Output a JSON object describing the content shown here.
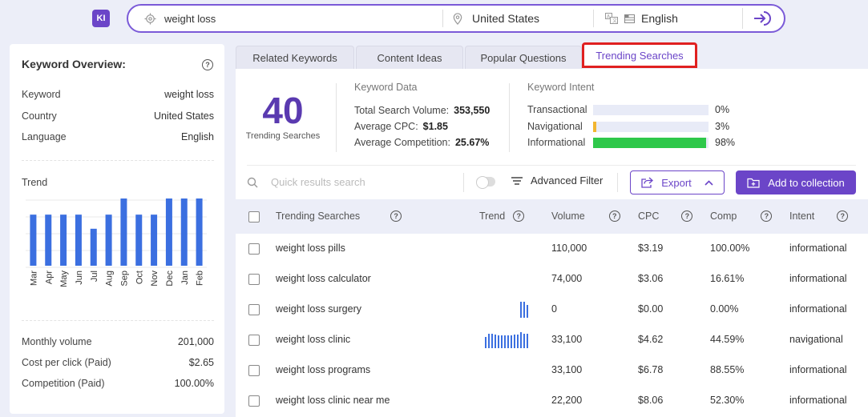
{
  "logo": "KI",
  "search": {
    "keyword": "weight loss",
    "country": "United States",
    "language": "English"
  },
  "overview": {
    "title": "Keyword Overview:",
    "rows": [
      {
        "label": "Keyword",
        "value": "weight loss"
      },
      {
        "label": "Country",
        "value": "United States"
      },
      {
        "label": "Language",
        "value": "English"
      }
    ],
    "trend_label": "Trend",
    "metrics": [
      {
        "label": "Monthly volume",
        "value": "201,000"
      },
      {
        "label": "Cost per click (Paid)",
        "value": "$2.65"
      },
      {
        "label": "Competition (Paid)",
        "value": "100.00%"
      }
    ]
  },
  "chart_data": {
    "type": "bar",
    "categories": [
      "Mar",
      "Apr",
      "May",
      "Jun",
      "Jul",
      "Aug",
      "Sep",
      "Oct",
      "Nov",
      "Dec",
      "Jan",
      "Feb"
    ],
    "values": [
      0.76,
      0.76,
      0.76,
      0.76,
      0.55,
      0.76,
      1.0,
      0.76,
      0.76,
      1.0,
      1.0,
      1.0
    ],
    "title": "",
    "xlabel": "",
    "ylabel": "",
    "grid": true,
    "color": "#3b6fe0"
  },
  "tabs": [
    {
      "label": "Related Keywords"
    },
    {
      "label": "Content Ideas"
    },
    {
      "label": "Popular Questions"
    },
    {
      "label": "Trending Searches"
    }
  ],
  "summary": {
    "count": "40",
    "count_caption": "Trending Searches",
    "kd_title": "Keyword Data",
    "kd_rows": [
      {
        "label": "Total Search Volume:",
        "value": "353,550"
      },
      {
        "label": "Average CPC:",
        "value": "$1.85"
      },
      {
        "label": "Average Competition:",
        "value": "25.67%"
      }
    ],
    "ki_title": "Keyword Intent",
    "intents": [
      {
        "label": "Transactional",
        "pct": "0%",
        "fraction": 0.0,
        "color": "#f2b630"
      },
      {
        "label": "Navigational",
        "pct": "3%",
        "fraction": 0.03,
        "color": "#f2b630"
      },
      {
        "label": "Informational",
        "pct": "98%",
        "fraction": 0.98,
        "color": "#2ec84a"
      }
    ]
  },
  "toolbar": {
    "search_placeholder": "Quick results search",
    "advanced_filter": "Advanced Filter",
    "export": "Export",
    "add_to_collection": "Add to collection"
  },
  "table": {
    "headers": [
      "Trending Searches",
      "Trend",
      "Volume",
      "CPC",
      "Comp",
      "Intent"
    ],
    "rows": [
      {
        "keyword": "weight loss pills",
        "trend": [],
        "volume": "110,000",
        "cpc": "$3.19",
        "comp": "100.00%",
        "intent": "informational"
      },
      {
        "keyword": "weight loss calculator",
        "trend": [],
        "volume": "74,000",
        "cpc": "$3.06",
        "comp": "16.61%",
        "intent": "informational"
      },
      {
        "keyword": "weight loss surgery",
        "trend": [
          1,
          1,
          0.8
        ],
        "volume": "0",
        "cpc": "$0.00",
        "comp": "0.00%",
        "intent": "informational"
      },
      {
        "keyword": "weight loss clinic",
        "trend": [
          0.7,
          0.9,
          0.9,
          0.85,
          0.8,
          0.8,
          0.8,
          0.8,
          0.8,
          0.85,
          0.85,
          1,
          0.9,
          0.9
        ],
        "volume": "33,100",
        "cpc": "$4.62",
        "comp": "44.59%",
        "intent": "navigational"
      },
      {
        "keyword": "weight loss programs",
        "trend": [],
        "volume": "33,100",
        "cpc": "$6.78",
        "comp": "88.55%",
        "intent": "informational"
      },
      {
        "keyword": "weight loss clinic near me",
        "trend": [],
        "volume": "22,200",
        "cpc": "$8.06",
        "comp": "52.30%",
        "intent": "informational"
      }
    ]
  }
}
